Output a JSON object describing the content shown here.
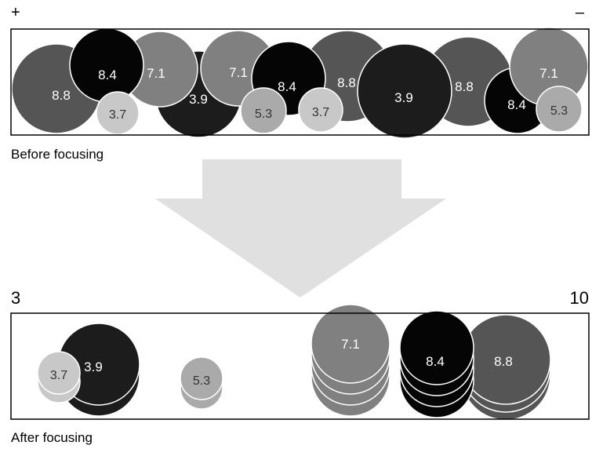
{
  "top_scale": {
    "left": "+",
    "right": "–"
  },
  "before_caption": "Before focusing",
  "after_scale": {
    "left": "3",
    "right": "10"
  },
  "after_caption": "After focusing",
  "colors": {
    "v37": "#c8c8c8",
    "v39": "#1c1c1c",
    "v53": "#aaaaaa",
    "v71": "#808080",
    "v84": "#050505",
    "v88": "#555555",
    "arrow": "#e0e0e0",
    "frame": "#000000"
  },
  "before_items": [
    {
      "label": "8.8",
      "color": "v88"
    },
    {
      "label": "8.4",
      "color": "v84"
    },
    {
      "label": "7.1",
      "color": "v71"
    },
    {
      "label": "3.7",
      "color": "v37"
    },
    {
      "label": "3.9",
      "color": "v39"
    },
    {
      "label": "7.1",
      "color": "v71"
    },
    {
      "label": "8.4",
      "color": "v84"
    },
    {
      "label": "5.3",
      "color": "v53"
    },
    {
      "label": "3.7",
      "color": "v37"
    },
    {
      "label": "8.8",
      "color": "v88"
    },
    {
      "label": "3.9",
      "color": "v39"
    },
    {
      "label": "8.8",
      "color": "v88"
    },
    {
      "label": "8.4",
      "color": "v84"
    },
    {
      "label": "7.1",
      "color": "v71"
    },
    {
      "label": "5.3",
      "color": "v53"
    }
  ],
  "after_groups": [
    {
      "labels": [
        "3.9",
        "3.7"
      ],
      "colors": [
        "v39",
        "v37"
      ]
    },
    {
      "labels": [
        "5.3"
      ],
      "colors": [
        "v53"
      ]
    },
    {
      "labels": [
        "7.1"
      ],
      "colors": [
        "v71"
      ]
    },
    {
      "labels": [
        "8.8",
        "8.4"
      ],
      "colors": [
        "v88",
        "v84"
      ]
    }
  ]
}
